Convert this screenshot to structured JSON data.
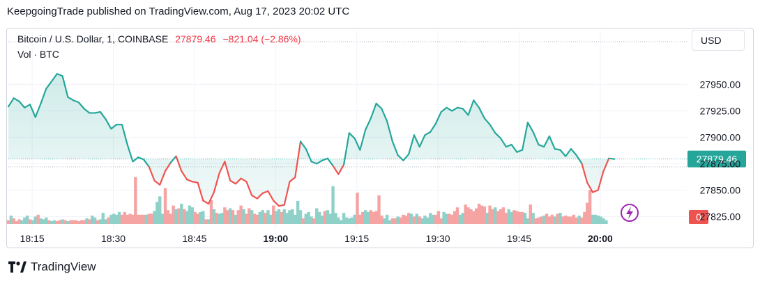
{
  "publisher": "KeepgoingTrade published on TradingView.com, Aug 17, 2023 20:02 UTC",
  "legend": {
    "symbol": "Bitcoin / U.S. Dollar, 1, COINBASE",
    "last": "27879.46",
    "change": "−821.04 (−2.86%)",
    "volume_label": "Vol · BTC"
  },
  "currency": "USD",
  "footer": "TradingView",
  "colors": {
    "up": "#26a69a",
    "down": "#ef5350",
    "up_vol": "#8fd1c8",
    "down_vol": "#f5a3a3",
    "fill": "#d9f0ec",
    "fill_red": "#fde4e4",
    "grid": "#f0f3fa",
    "axis_text": "#131722",
    "badge_last": "#26a69a",
    "badge_vol": "#ef5350",
    "flash_icon": "#9c27b0"
  },
  "icons": {
    "flash": "lightning-icon",
    "logo": "tradingview-logo-icon"
  },
  "chart_data": {
    "type": "line",
    "title": "Bitcoin / U.S. Dollar, 1, COINBASE",
    "y_ticks": [
      "27950.00",
      "27925.00",
      "27900.00",
      "27875.00",
      "27850.00",
      "27825.00"
    ],
    "ylim": [
      27818,
      27972
    ],
    "x_ticks": [
      "18:15",
      "18:30",
      "18:45",
      "19:00",
      "19:15",
      "19:30",
      "19:45",
      "20:00"
    ],
    "x_tick_minutes": [
      1095,
      1110,
      1125,
      1140,
      1155,
      1170,
      1185,
      1200
    ],
    "xlim": [
      1090.6,
      1205.3
    ],
    "last_price_label": "27879.46",
    "volume_label": "0",
    "price": [
      [
        1090.6,
        27929
      ],
      [
        1091.6,
        27937
      ],
      [
        1092.6,
        27934
      ],
      [
        1093.6,
        27928
      ],
      [
        1094.6,
        27931
      ],
      [
        1095.6,
        27919
      ],
      [
        1096.6,
        27932
      ],
      [
        1097.6,
        27946
      ],
      [
        1098.6,
        27953
      ],
      [
        1099.6,
        27960
      ],
      [
        1100.6,
        27958
      ],
      [
        1101.6,
        27938
      ],
      [
        1102.6,
        27935
      ],
      [
        1103.6,
        27933
      ],
      [
        1104.6,
        27927
      ],
      [
        1105.6,
        27923
      ],
      [
        1106.6,
        27923
      ],
      [
        1107.6,
        27924
      ],
      [
        1108.6,
        27917
      ],
      [
        1109.6,
        27908
      ],
      [
        1110.6,
        27912
      ],
      [
        1111.6,
        27912
      ],
      [
        1112.6,
        27893
      ],
      [
        1113.6,
        27877
      ],
      [
        1114.6,
        27881
      ],
      [
        1115.6,
        27879
      ],
      [
        1116.6,
        27872
      ],
      [
        1117.6,
        27859
      ],
      [
        1118.6,
        27855
      ],
      [
        1119.6,
        27868
      ],
      [
        1120.6,
        27876
      ],
      [
        1121.6,
        27882
      ],
      [
        1122.6,
        27868
      ],
      [
        1123.6,
        27860
      ],
      [
        1124.6,
        27858
      ],
      [
        1125.6,
        27857
      ],
      [
        1126.6,
        27840
      ],
      [
        1127.6,
        27837
      ],
      [
        1128.6,
        27848
      ],
      [
        1129.6,
        27866
      ],
      [
        1130.6,
        27877
      ],
      [
        1131.6,
        27859
      ],
      [
        1132.6,
        27856
      ],
      [
        1133.6,
        27861
      ],
      [
        1134.6,
        27858
      ],
      [
        1135.6,
        27845
      ],
      [
        1136.6,
        27842
      ],
      [
        1137.6,
        27847
      ],
      [
        1138.6,
        27849
      ],
      [
        1139.6,
        27840
      ],
      [
        1140.6,
        27835
      ],
      [
        1141.6,
        27836
      ],
      [
        1142.6,
        27858
      ],
      [
        1143.6,
        27862
      ],
      [
        1144.6,
        27896
      ],
      [
        1145.6,
        27889
      ],
      [
        1146.6,
        27877
      ],
      [
        1147.6,
        27875
      ],
      [
        1148.6,
        27878
      ],
      [
        1149.6,
        27880
      ],
      [
        1150.6,
        27873
      ],
      [
        1151.6,
        27865
      ],
      [
        1152.6,
        27874
      ],
      [
        1153.6,
        27904
      ],
      [
        1154.6,
        27899
      ],
      [
        1155.6,
        27888
      ],
      [
        1156.6,
        27907
      ],
      [
        1157.6,
        27918
      ],
      [
        1158.6,
        27932
      ],
      [
        1159.6,
        27927
      ],
      [
        1160.6,
        27915
      ],
      [
        1161.6,
        27896
      ],
      [
        1162.6,
        27883
      ],
      [
        1163.6,
        27878
      ],
      [
        1164.6,
        27884
      ],
      [
        1165.6,
        27902
      ],
      [
        1166.6,
        27891
      ],
      [
        1167.6,
        27902
      ],
      [
        1168.6,
        27905
      ],
      [
        1169.6,
        27913
      ],
      [
        1170.6,
        27924
      ],
      [
        1171.6,
        27928
      ],
      [
        1172.6,
        27925
      ],
      [
        1173.6,
        27928
      ],
      [
        1174.6,
        27927
      ],
      [
        1175.6,
        27921
      ],
      [
        1176.6,
        27935
      ],
      [
        1177.6,
        27928
      ],
      [
        1178.6,
        27918
      ],
      [
        1179.6,
        27912
      ],
      [
        1180.6,
        27904
      ],
      [
        1181.6,
        27899
      ],
      [
        1182.6,
        27891
      ],
      [
        1183.6,
        27893
      ],
      [
        1184.6,
        27886
      ],
      [
        1185.6,
        27888
      ],
      [
        1186.6,
        27914
      ],
      [
        1187.6,
        27905
      ],
      [
        1188.6,
        27893
      ],
      [
        1189.6,
        27891
      ],
      [
        1190.6,
        27901
      ],
      [
        1191.6,
        27889
      ],
      [
        1192.6,
        27888
      ],
      [
        1193.6,
        27882
      ],
      [
        1194.6,
        27889
      ],
      [
        1195.6,
        27883
      ],
      [
        1196.6,
        27875
      ],
      [
        1197.6,
        27857
      ],
      [
        1198.6,
        27848
      ],
      [
        1199.6,
        27850
      ],
      [
        1200.6,
        27868
      ],
      [
        1201.6,
        27880
      ],
      [
        1202.6,
        27879.46
      ]
    ],
    "volume": [
      [
        1090.6,
        0.4,
        "d"
      ],
      [
        1091.1,
        0.9,
        "u"
      ],
      [
        1091.6,
        0.6,
        "d"
      ],
      [
        1092.1,
        0.3,
        "d"
      ],
      [
        1092.6,
        0.5,
        "d"
      ],
      [
        1093.1,
        0.4,
        "u"
      ],
      [
        1093.6,
        0.7,
        "u"
      ],
      [
        1094.1,
        0.9,
        "u"
      ],
      [
        1094.6,
        0.5,
        "d"
      ],
      [
        1095.1,
        0.4,
        "u"
      ],
      [
        1095.6,
        0.8,
        "u"
      ],
      [
        1096.1,
        1.0,
        "d"
      ],
      [
        1096.6,
        0.6,
        "u"
      ],
      [
        1097.1,
        0.5,
        "u"
      ],
      [
        1097.6,
        0.7,
        "u"
      ],
      [
        1098.1,
        0.4,
        "d"
      ],
      [
        1098.6,
        0.3,
        "u"
      ],
      [
        1099.1,
        0.4,
        "u"
      ],
      [
        1099.6,
        0.3,
        "d"
      ],
      [
        1100.1,
        0.4,
        "d"
      ],
      [
        1100.6,
        0.5,
        "u"
      ],
      [
        1101.1,
        0.4,
        "d"
      ],
      [
        1101.6,
        0.3,
        "u"
      ],
      [
        1102.1,
        0.4,
        "d"
      ],
      [
        1102.6,
        0.4,
        "d"
      ],
      [
        1103.1,
        0.4,
        "d"
      ],
      [
        1103.6,
        0.3,
        "d"
      ],
      [
        1104.1,
        0.4,
        "d"
      ],
      [
        1104.6,
        0.4,
        "d"
      ],
      [
        1105.1,
        0.6,
        "u"
      ],
      [
        1105.6,
        0.5,
        "d"
      ],
      [
        1106.1,
        0.9,
        "u"
      ],
      [
        1106.6,
        0.7,
        "u"
      ],
      [
        1107.1,
        0.4,
        "d"
      ],
      [
        1107.6,
        0.5,
        "u"
      ],
      [
        1108.1,
        1.2,
        "u"
      ],
      [
        1108.6,
        0.5,
        "u"
      ],
      [
        1109.1,
        0.7,
        "d"
      ],
      [
        1109.6,
        1.0,
        "u"
      ],
      [
        1110.1,
        1.1,
        "u"
      ],
      [
        1110.6,
        1.0,
        "u"
      ],
      [
        1111.1,
        1.3,
        "u"
      ],
      [
        1111.6,
        1.0,
        "d"
      ],
      [
        1112.1,
        1.3,
        "d"
      ],
      [
        1112.6,
        1.0,
        "d"
      ],
      [
        1113.1,
        1.1,
        "d"
      ],
      [
        1113.6,
        1.0,
        "d"
      ],
      [
        1114.1,
        5.1,
        "d"
      ],
      [
        1114.6,
        1.0,
        "d"
      ],
      [
        1115.1,
        1.0,
        "d"
      ],
      [
        1115.6,
        1.0,
        "d"
      ],
      [
        1116.1,
        1.0,
        "u"
      ],
      [
        1116.6,
        1.1,
        "d"
      ],
      [
        1117.1,
        1.1,
        "d"
      ],
      [
        1117.6,
        1.4,
        "u"
      ],
      [
        1118.1,
        2.4,
        "u"
      ],
      [
        1118.6,
        3.0,
        "u"
      ],
      [
        1119.1,
        1.1,
        "u"
      ],
      [
        1119.6,
        3.9,
        "d"
      ],
      [
        1120.1,
        1.5,
        "d"
      ],
      [
        1120.6,
        1.1,
        "d"
      ],
      [
        1121.1,
        2.0,
        "d"
      ],
      [
        1121.6,
        1.6,
        "u"
      ],
      [
        1122.1,
        1.7,
        "d"
      ],
      [
        1122.6,
        2.2,
        "u"
      ],
      [
        1123.1,
        1.6,
        "d"
      ],
      [
        1123.6,
        1.4,
        "u"
      ],
      [
        1124.1,
        2.0,
        "u"
      ],
      [
        1124.6,
        1.8,
        "u"
      ],
      [
        1125.1,
        1.3,
        "d"
      ],
      [
        1125.6,
        1.1,
        "d"
      ],
      [
        1126.1,
        1.3,
        "u"
      ],
      [
        1126.6,
        1.4,
        "u"
      ],
      [
        1127.1,
        0.5,
        "d"
      ],
      [
        1127.6,
        0.5,
        "u"
      ],
      [
        1128.1,
        2.6,
        "d"
      ],
      [
        1128.6,
        1.6,
        "u"
      ],
      [
        1129.1,
        1.2,
        "d"
      ],
      [
        1129.6,
        1.1,
        "u"
      ],
      [
        1130.1,
        1.2,
        "u"
      ],
      [
        1130.6,
        1.8,
        "d"
      ],
      [
        1131.1,
        1.5,
        "d"
      ],
      [
        1131.6,
        1.7,
        "u"
      ],
      [
        1132.1,
        1.5,
        "d"
      ],
      [
        1132.6,
        1.0,
        "u"
      ],
      [
        1133.1,
        1.5,
        "d"
      ],
      [
        1133.6,
        2.0,
        "d"
      ],
      [
        1134.1,
        1.6,
        "u"
      ],
      [
        1134.6,
        1.1,
        "d"
      ],
      [
        1135.1,
        1.7,
        "d"
      ],
      [
        1135.6,
        1.5,
        "u"
      ],
      [
        1136.1,
        1.1,
        "d"
      ],
      [
        1136.6,
        1.0,
        "d"
      ],
      [
        1137.1,
        1.3,
        "u"
      ],
      [
        1137.6,
        1.5,
        "u"
      ],
      [
        1138.1,
        1.2,
        "d"
      ],
      [
        1138.6,
        1.5,
        "u"
      ],
      [
        1139.1,
        1.0,
        "u"
      ],
      [
        1139.6,
        2.0,
        "d"
      ],
      [
        1140.1,
        1.4,
        "u"
      ],
      [
        1140.6,
        1.6,
        "u"
      ],
      [
        1141.1,
        1.3,
        "d"
      ],
      [
        1141.6,
        1.6,
        "u"
      ],
      [
        1142.1,
        1.2,
        "u"
      ],
      [
        1142.6,
        1.5,
        "u"
      ],
      [
        1143.1,
        1.6,
        "u"
      ],
      [
        1143.6,
        1.0,
        "u"
      ],
      [
        1144.1,
        2.5,
        "u"
      ],
      [
        1144.6,
        1.5,
        "u"
      ],
      [
        1145.1,
        0.6,
        "d"
      ],
      [
        1145.6,
        1.1,
        "u"
      ],
      [
        1146.1,
        1.3,
        "u"
      ],
      [
        1146.6,
        0.8,
        "u"
      ],
      [
        1147.1,
        0.6,
        "d"
      ],
      [
        1147.6,
        1.7,
        "u"
      ],
      [
        1148.1,
        1.3,
        "u"
      ],
      [
        1148.6,
        0.9,
        "u"
      ],
      [
        1149.1,
        1.4,
        "d"
      ],
      [
        1149.6,
        1.5,
        "u"
      ],
      [
        1150.1,
        1.1,
        "u"
      ],
      [
        1150.6,
        4.1,
        "u"
      ],
      [
        1151.1,
        1.2,
        "u"
      ],
      [
        1151.6,
        0.7,
        "u"
      ],
      [
        1152.1,
        0.4,
        "u"
      ],
      [
        1152.6,
        1.2,
        "u"
      ],
      [
        1153.1,
        0.7,
        "u"
      ],
      [
        1153.6,
        0.6,
        "u"
      ],
      [
        1154.1,
        0.7,
        "u"
      ],
      [
        1154.6,
        1.0,
        "u"
      ],
      [
        1155.1,
        3.4,
        "d"
      ],
      [
        1155.6,
        1.0,
        "d"
      ],
      [
        1156.1,
        1.3,
        "d"
      ],
      [
        1156.6,
        1.5,
        "u"
      ],
      [
        1157.1,
        1.3,
        "u"
      ],
      [
        1157.6,
        1.5,
        "d"
      ],
      [
        1158.1,
        1.3,
        "d"
      ],
      [
        1158.6,
        1.4,
        "d"
      ],
      [
        1159.1,
        3.1,
        "d"
      ],
      [
        1159.6,
        0.9,
        "d"
      ],
      [
        1160.1,
        0.6,
        "u"
      ],
      [
        1160.6,
        1.0,
        "u"
      ],
      [
        1161.1,
        0.4,
        "u"
      ],
      [
        1161.6,
        0.6,
        "d"
      ],
      [
        1162.1,
        0.6,
        "d"
      ],
      [
        1162.6,
        0.8,
        "u"
      ],
      [
        1163.1,
        0.7,
        "d"
      ],
      [
        1163.6,
        1.0,
        "d"
      ],
      [
        1164.1,
        0.9,
        "d"
      ],
      [
        1164.6,
        1.2,
        "d"
      ],
      [
        1165.1,
        1.1,
        "u"
      ],
      [
        1165.6,
        0.8,
        "d"
      ],
      [
        1166.1,
        1.1,
        "u"
      ],
      [
        1166.6,
        0.8,
        "d"
      ],
      [
        1167.1,
        0.6,
        "u"
      ],
      [
        1167.6,
        0.9,
        "u"
      ],
      [
        1168.1,
        0.7,
        "u"
      ],
      [
        1168.6,
        1.2,
        "u"
      ],
      [
        1169.1,
        1.0,
        "u"
      ],
      [
        1169.6,
        1.0,
        "d"
      ],
      [
        1170.1,
        1.4,
        "d"
      ],
      [
        1170.6,
        0.6,
        "d"
      ],
      [
        1171.1,
        1.3,
        "u"
      ],
      [
        1171.6,
        1.1,
        "u"
      ],
      [
        1172.1,
        1.1,
        "d"
      ],
      [
        1172.6,
        1.0,
        "d"
      ],
      [
        1173.1,
        1.4,
        "d"
      ],
      [
        1173.6,
        1.8,
        "d"
      ],
      [
        1174.1,
        1.0,
        "u"
      ],
      [
        1174.6,
        1.2,
        "u"
      ],
      [
        1175.1,
        2.1,
        "d"
      ],
      [
        1175.6,
        1.8,
        "d"
      ],
      [
        1176.1,
        1.6,
        "d"
      ],
      [
        1176.6,
        1.4,
        "d"
      ],
      [
        1177.1,
        1.7,
        "d"
      ],
      [
        1177.6,
        2.2,
        "d"
      ],
      [
        1178.1,
        2.0,
        "d"
      ],
      [
        1178.6,
        1.9,
        "d"
      ],
      [
        1179.1,
        1.2,
        "u"
      ],
      [
        1179.6,
        2.0,
        "d"
      ],
      [
        1180.1,
        1.6,
        "d"
      ],
      [
        1180.6,
        1.8,
        "u"
      ],
      [
        1181.1,
        1.4,
        "d"
      ],
      [
        1181.6,
        1.6,
        "d"
      ],
      [
        1182.1,
        1.8,
        "d"
      ],
      [
        1182.6,
        1.2,
        "d"
      ],
      [
        1183.1,
        1.6,
        "u"
      ],
      [
        1183.6,
        1.3,
        "u"
      ],
      [
        1184.1,
        1.5,
        "d"
      ],
      [
        1184.6,
        1.4,
        "d"
      ],
      [
        1185.1,
        1.3,
        "d"
      ],
      [
        1185.6,
        1.3,
        "d"
      ],
      [
        1186.1,
        1.2,
        "u"
      ],
      [
        1186.6,
        0.6,
        "u"
      ],
      [
        1187.1,
        2.1,
        "d"
      ],
      [
        1187.6,
        1.2,
        "u"
      ],
      [
        1188.1,
        0.6,
        "d"
      ],
      [
        1188.6,
        0.7,
        "d"
      ],
      [
        1189.1,
        0.8,
        "d"
      ],
      [
        1189.6,
        0.9,
        "u"
      ],
      [
        1190.1,
        1.1,
        "d"
      ],
      [
        1190.6,
        0.8,
        "d"
      ],
      [
        1191.1,
        1.0,
        "d"
      ],
      [
        1191.6,
        0.8,
        "u"
      ],
      [
        1192.1,
        1.1,
        "d"
      ],
      [
        1192.6,
        1.2,
        "u"
      ],
      [
        1193.1,
        0.8,
        "d"
      ],
      [
        1193.6,
        0.9,
        "d"
      ],
      [
        1194.1,
        0.8,
        "d"
      ],
      [
        1194.6,
        0.8,
        "d"
      ],
      [
        1195.1,
        1.0,
        "d"
      ],
      [
        1195.6,
        0.7,
        "d"
      ],
      [
        1196.1,
        0.9,
        "u"
      ],
      [
        1196.6,
        0.7,
        "d"
      ],
      [
        1197.1,
        1.3,
        "d"
      ],
      [
        1197.6,
        2.3,
        "d"
      ],
      [
        1198.1,
        3.7,
        "d"
      ],
      [
        1198.6,
        1.0,
        "u"
      ],
      [
        1199.1,
        1.0,
        "u"
      ],
      [
        1199.6,
        0.9,
        "u"
      ],
      [
        1200.1,
        0.8,
        "u"
      ],
      [
        1200.6,
        0.6,
        "u"
      ],
      [
        1201.1,
        0.4,
        "u"
      ]
    ],
    "volume_max": 5.3
  }
}
